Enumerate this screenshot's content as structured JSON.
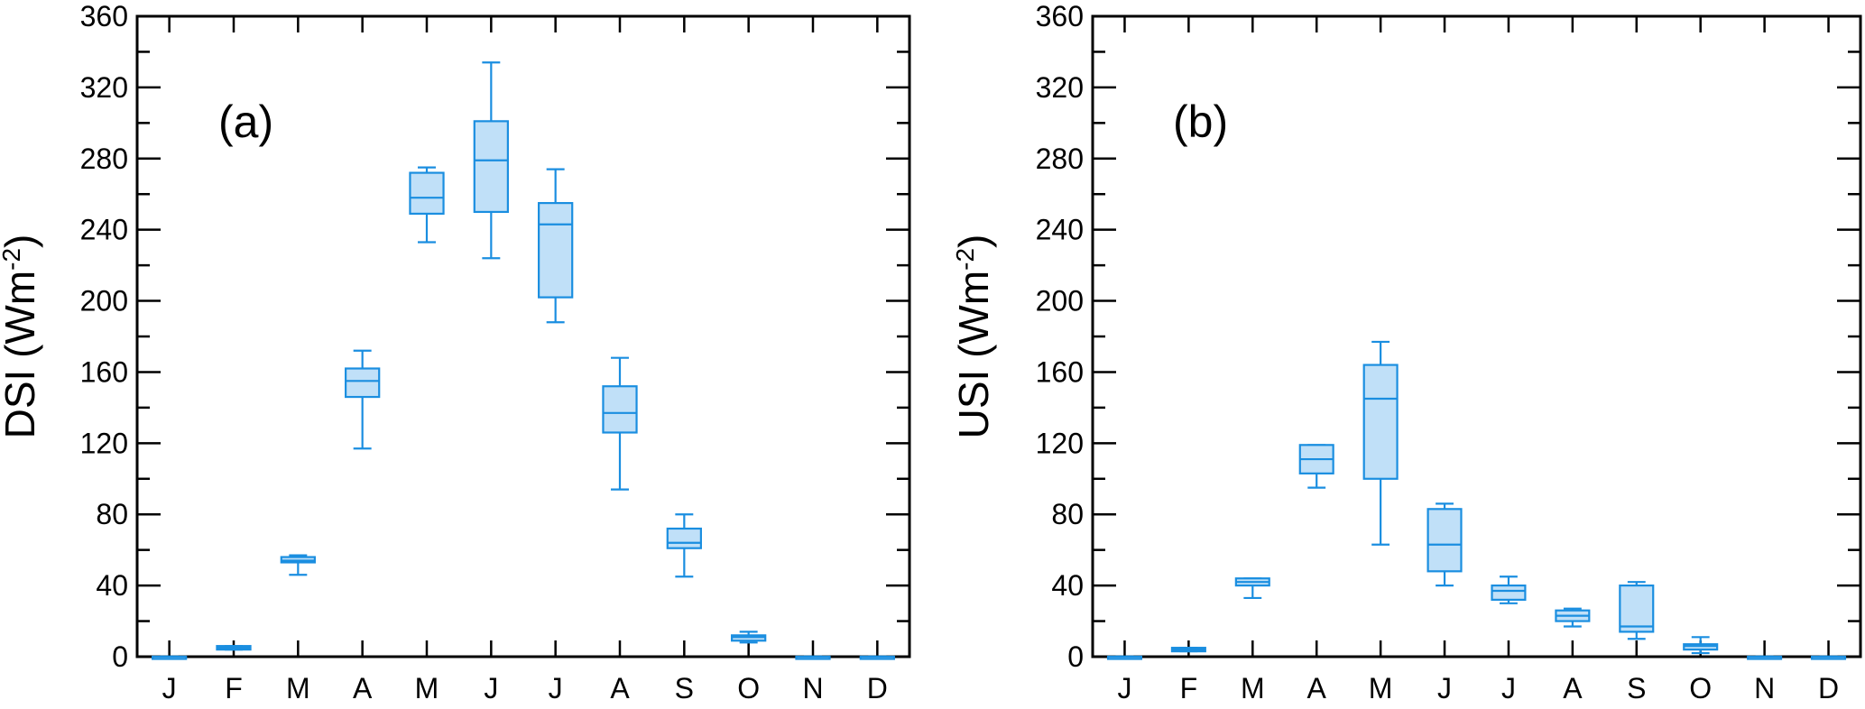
{
  "chart_data": [
    {
      "type": "box",
      "panel_label": "(a)",
      "ylabel": "DSI (Wm",
      "ylabel_unit_exponent": "-2",
      "ylabel_close": ")",
      "ylim": [
        0,
        360
      ],
      "yticks": [
        0,
        40,
        80,
        120,
        160,
        200,
        240,
        280,
        320,
        360
      ],
      "categories": [
        "J",
        "F",
        "M",
        "A",
        "M",
        "J",
        "J",
        "A",
        "S",
        "O",
        "N",
        "D"
      ],
      "color": "#1a8ee0",
      "fill": "#c0e0f8",
      "boxes": [
        {
          "min": 0,
          "q1": 0,
          "median": 0,
          "q3": 0,
          "max": 0
        },
        {
          "min": 4,
          "q1": 4,
          "median": 5,
          "q3": 6,
          "max": 6
        },
        {
          "min": 46,
          "q1": 53,
          "median": 54,
          "q3": 56,
          "max": 57
        },
        {
          "min": 117,
          "q1": 146,
          "median": 155,
          "q3": 162,
          "max": 172
        },
        {
          "min": 233,
          "q1": 249,
          "median": 258,
          "q3": 272,
          "max": 275
        },
        {
          "min": 224,
          "q1": 250,
          "median": 279,
          "q3": 301,
          "max": 334
        },
        {
          "min": 188,
          "q1": 202,
          "median": 243,
          "q3": 255,
          "max": 274
        },
        {
          "min": 94,
          "q1": 126,
          "median": 137,
          "q3": 152,
          "max": 168
        },
        {
          "min": 45,
          "q1": 61,
          "median": 64,
          "q3": 72,
          "max": 80
        },
        {
          "min": 8,
          "q1": 9,
          "median": 11,
          "q3": 12,
          "max": 14
        },
        {
          "min": 0,
          "q1": 0,
          "median": 0,
          "q3": 0,
          "max": 0
        },
        {
          "min": 0,
          "q1": 0,
          "median": 0,
          "q3": 0,
          "max": 0
        }
      ]
    },
    {
      "type": "box",
      "panel_label": "(b)",
      "ylabel": "USI (Wm",
      "ylabel_unit_exponent": "-2",
      "ylabel_close": ")",
      "ylim": [
        0,
        360
      ],
      "yticks": [
        0,
        40,
        80,
        120,
        160,
        200,
        240,
        280,
        320,
        360
      ],
      "categories": [
        "J",
        "F",
        "M",
        "A",
        "M",
        "J",
        "J",
        "A",
        "S",
        "O",
        "N",
        "D"
      ],
      "color": "#1a8ee0",
      "fill": "#c0e0f8",
      "boxes": [
        {
          "min": 0,
          "q1": 0,
          "median": 0,
          "q3": 0,
          "max": 0
        },
        {
          "min": 3,
          "q1": 3,
          "median": 4,
          "q3": 5,
          "max": 5
        },
        {
          "min": 33,
          "q1": 40,
          "median": 42,
          "q3": 44,
          "max": 44
        },
        {
          "min": 95,
          "q1": 103,
          "median": 111,
          "q3": 119,
          "max": 119
        },
        {
          "min": 63,
          "q1": 100,
          "median": 145,
          "q3": 164,
          "max": 177
        },
        {
          "min": 40,
          "q1": 48,
          "median": 63,
          "q3": 83,
          "max": 86
        },
        {
          "min": 30,
          "q1": 32,
          "median": 37,
          "q3": 40,
          "max": 45
        },
        {
          "min": 17,
          "q1": 20,
          "median": 23,
          "q3": 26,
          "max": 27
        },
        {
          "min": 10,
          "q1": 14,
          "median": 17,
          "q3": 40,
          "max": 42
        },
        {
          "min": 2,
          "q1": 4,
          "median": 6,
          "q3": 7,
          "max": 11
        },
        {
          "min": 0,
          "q1": 0,
          "median": 0,
          "q3": 0,
          "max": 0
        },
        {
          "min": 0,
          "q1": 0,
          "median": 0,
          "q3": 0,
          "max": 0
        }
      ]
    }
  ]
}
